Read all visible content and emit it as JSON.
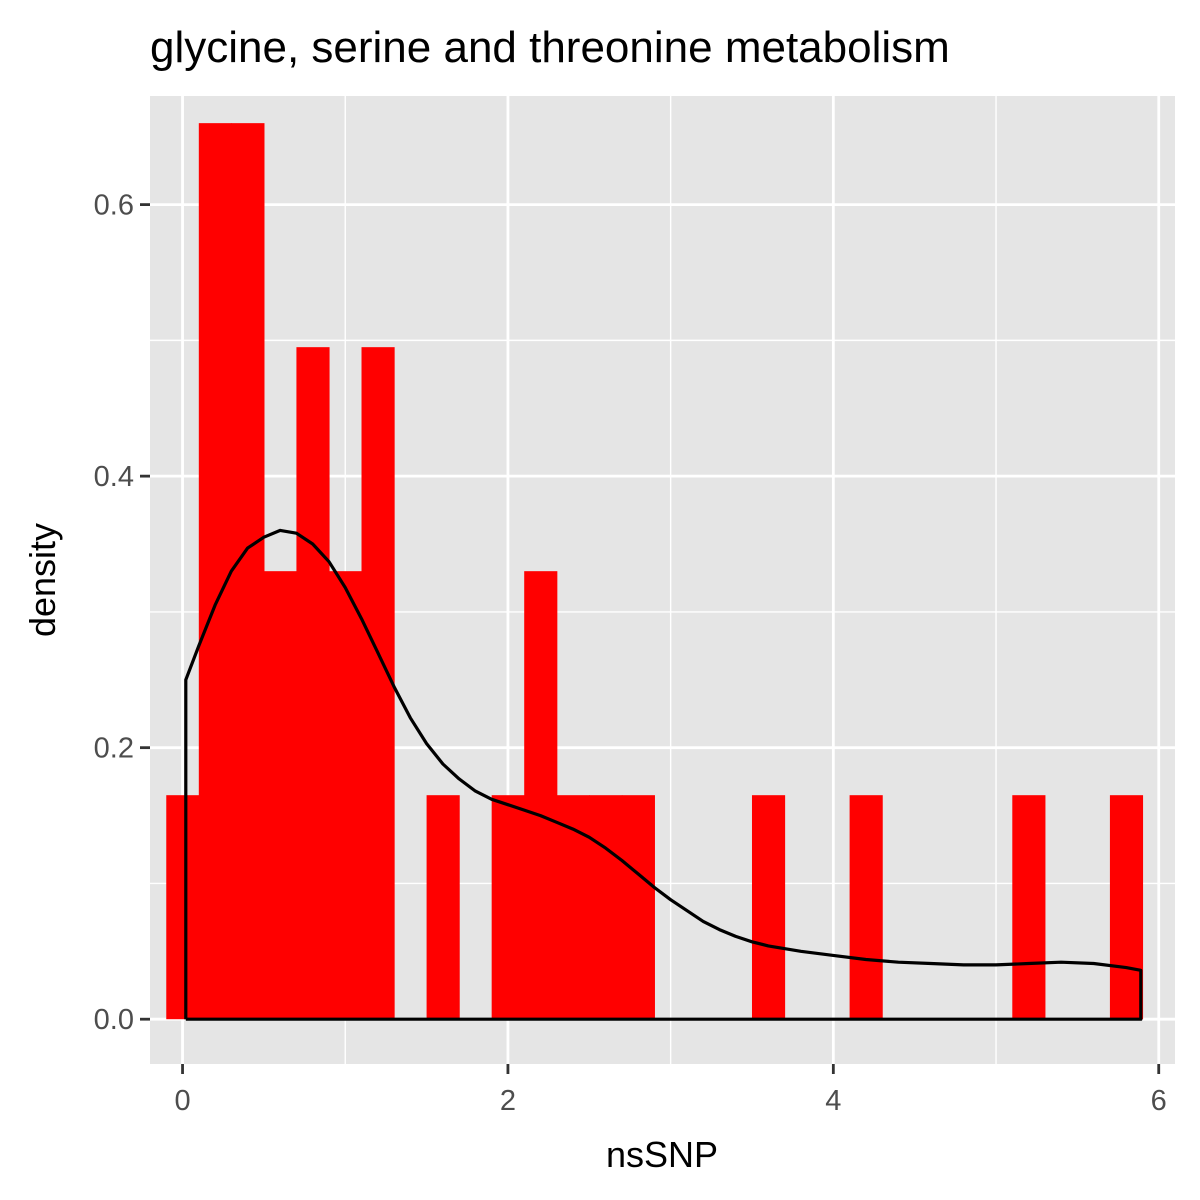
{
  "chart_data": {
    "type": "bar",
    "title": "glycine, serine and threonine metabolism",
    "xlabel": "nsSNP",
    "ylabel": "density",
    "xlim": [
      -0.2,
      6.1
    ],
    "ylim": [
      -0.033,
      0.68
    ],
    "x_ticks": [
      0,
      2,
      4,
      6
    ],
    "x_tick_labels": [
      "0",
      "2",
      "4",
      "6"
    ],
    "y_ticks": [
      0.0,
      0.2,
      0.4,
      0.6
    ],
    "y_tick_labels": [
      "0.0",
      "0.2",
      "0.4",
      "0.6"
    ],
    "grid": true,
    "bin_width": 0.2,
    "bars": [
      {
        "x0": -0.1,
        "x1": 0.1,
        "density": 0.165
      },
      {
        "x0": 0.1,
        "x1": 0.3,
        "density": 0.66
      },
      {
        "x0": 0.3,
        "x1": 0.5,
        "density": 0.66
      },
      {
        "x0": 0.5,
        "x1": 0.7,
        "density": 0.33
      },
      {
        "x0": 0.7,
        "x1": 0.9,
        "density": 0.495
      },
      {
        "x0": 0.9,
        "x1": 1.1,
        "density": 0.33
      },
      {
        "x0": 1.1,
        "x1": 1.3,
        "density": 0.495
      },
      {
        "x0": 1.5,
        "x1": 1.7,
        "density": 0.165
      },
      {
        "x0": 1.9,
        "x1": 2.1,
        "density": 0.165
      },
      {
        "x0": 2.1,
        "x1": 2.3,
        "density": 0.33
      },
      {
        "x0": 2.3,
        "x1": 2.5,
        "density": 0.165
      },
      {
        "x0": 2.5,
        "x1": 2.7,
        "density": 0.165
      },
      {
        "x0": 2.7,
        "x1": 2.9,
        "density": 0.165
      },
      {
        "x0": 3.5,
        "x1": 3.7,
        "density": 0.165
      },
      {
        "x0": 4.1,
        "x1": 4.3,
        "density": 0.165
      },
      {
        "x0": 5.1,
        "x1": 5.3,
        "density": 0.165
      },
      {
        "x0": 5.7,
        "x1": 5.9,
        "density": 0.165
      }
    ],
    "density_curve": {
      "x": [
        0.02,
        0.02,
        0.1,
        0.2,
        0.3,
        0.4,
        0.5,
        0.6,
        0.7,
        0.8,
        0.9,
        1.0,
        1.1,
        1.2,
        1.3,
        1.4,
        1.5,
        1.6,
        1.7,
        1.8,
        1.9,
        2.0,
        2.1,
        2.2,
        2.3,
        2.4,
        2.5,
        2.6,
        2.7,
        2.8,
        2.9,
        3.0,
        3.1,
        3.2,
        3.3,
        3.4,
        3.5,
        3.6,
        3.8,
        4.0,
        4.2,
        4.4,
        4.6,
        4.8,
        5.0,
        5.2,
        5.4,
        5.6,
        5.8,
        5.89,
        5.89,
        0.02
      ],
      "y": [
        0.0,
        0.25,
        0.275,
        0.305,
        0.33,
        0.347,
        0.355,
        0.36,
        0.358,
        0.35,
        0.337,
        0.318,
        0.295,
        0.27,
        0.245,
        0.222,
        0.203,
        0.188,
        0.177,
        0.168,
        0.162,
        0.158,
        0.154,
        0.15,
        0.145,
        0.14,
        0.134,
        0.126,
        0.117,
        0.107,
        0.097,
        0.088,
        0.08,
        0.072,
        0.066,
        0.061,
        0.057,
        0.054,
        0.05,
        0.047,
        0.044,
        0.042,
        0.041,
        0.04,
        0.04,
        0.041,
        0.042,
        0.041,
        0.038,
        0.036,
        0.0,
        0.0
      ]
    },
    "bar_color": "#ff0000",
    "curve_color": "#000000",
    "panel_color": "#e5e5e5",
    "grid_color": "#ffffff"
  }
}
